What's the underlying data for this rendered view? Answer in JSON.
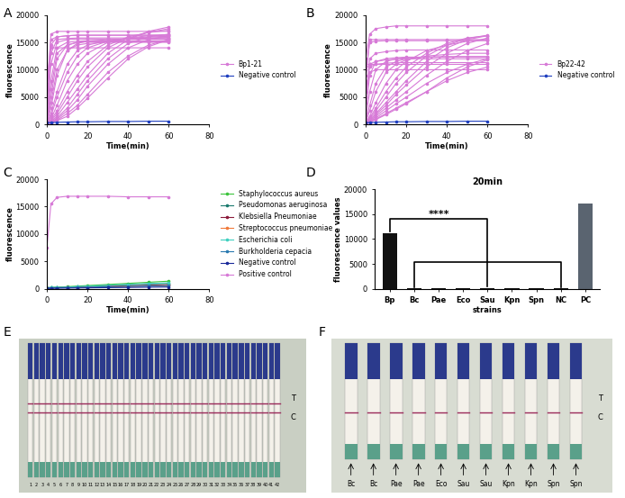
{
  "chart_data": [
    {
      "panel": "A",
      "type": "line",
      "x_label": "Time(min)",
      "y_label": "fluorescence",
      "xlim": [
        0,
        80
      ],
      "xticks": [
        0,
        20,
        40,
        60,
        80
      ],
      "ylim": [
        0,
        20000
      ],
      "yticks": [
        0,
        5000,
        10000,
        15000,
        20000
      ],
      "legend": "right",
      "x": [
        0,
        2,
        5,
        10,
        15,
        20,
        30,
        40,
        50,
        60
      ],
      "series": [
        {
          "name": "Bp1-21",
          "color": "#d77ad7",
          "marker": "o",
          "curves": [
            [
              7000,
              15500,
              16000,
              16200,
              16300,
              16300,
              16300,
              16300,
              16300,
              16300
            ],
            [
              3000,
              13000,
              15500,
              15700,
              15800,
              15800,
              15800,
              15800,
              15800,
              15800
            ],
            [
              500,
              8000,
              14000,
              15000,
              15200,
              15300,
              15300,
              15300,
              15300,
              15300
            ],
            [
              300,
              5000,
              12000,
              14500,
              15000,
              15200,
              15200,
              15200,
              15200,
              15200
            ],
            [
              300,
              3000,
              9000,
              13500,
              14800,
              15200,
              15500,
              15600,
              15600,
              15600
            ],
            [
              200,
              2000,
              6000,
              11000,
              13500,
              14500,
              15300,
              15600,
              15800,
              15900
            ],
            [
              200,
              1500,
              5000,
              9500,
              12500,
              14000,
              15200,
              15700,
              16000,
              16100
            ],
            [
              200,
              1000,
              3500,
              8000,
              11000,
              13000,
              15000,
              15800,
              16200,
              16400
            ],
            [
              200,
              800,
              2500,
              6000,
              9000,
              11500,
              14500,
              16000,
              16800,
              17200
            ],
            [
              200,
              600,
              2000,
              5000,
              8000,
              10500,
              14000,
              15800,
              16800,
              17500
            ],
            [
              200,
              500,
              1500,
              4000,
              6500,
              9000,
              13000,
              15500,
              17000,
              17800
            ],
            [
              150,
              400,
              1200,
              3000,
              5500,
              8000,
              12000,
              14800,
              16000,
              16500
            ],
            [
              150,
              400,
              1000,
              2500,
              4500,
              7000,
              11000,
              14000,
              15500,
              16200
            ],
            [
              150,
              300,
              800,
              2000,
              3500,
              5500,
              9500,
              12500,
              14500,
              15500
            ],
            [
              150,
              300,
              700,
              1500,
              3000,
              4800,
              8500,
              12000,
              14200,
              15500
            ],
            [
              7500,
              14000,
              14000,
              14000,
              14000,
              14000,
              14000,
              14000,
              14000,
              14000
            ],
            [
              5000,
              16500,
              17000,
              17000,
              17000,
              17000,
              17000,
              17000,
              17000,
              17000
            ],
            [
              2000,
              14500,
              16000,
              16200,
              16300,
              16300,
              16300,
              16300,
              16300,
              16300
            ],
            [
              1000,
              11000,
              15000,
              15500,
              15600,
              15600,
              15600,
              15600,
              15600,
              15600
            ],
            [
              500,
              6500,
              13000,
              14500,
              15000,
              15100,
              15100,
              15100,
              15100,
              15100
            ],
            [
              400,
              4000,
              10000,
              13500,
              14500,
              14800,
              15000,
              15000,
              15000,
              15000
            ]
          ]
        },
        {
          "name": "Negative control",
          "color": "#1f3fbf",
          "marker": "o",
          "values": [
            300,
            350,
            400,
            450,
            500,
            500,
            550,
            550,
            600,
            600
          ]
        }
      ]
    },
    {
      "panel": "B",
      "type": "line",
      "x_label": "Time(min)",
      "y_label": "fluorescence",
      "xlim": [
        0,
        80
      ],
      "xticks": [
        0,
        20,
        40,
        60,
        80
      ],
      "ylim": [
        0,
        20000
      ],
      "yticks": [
        0,
        5000,
        10000,
        15000,
        20000
      ],
      "legend": "right",
      "x": [
        0,
        2,
        5,
        10,
        15,
        20,
        30,
        40,
        50,
        60
      ],
      "series": [
        {
          "name": "Bp22-42",
          "color": "#d77ad7",
          "marker": "o",
          "curves": [
            [
              10000,
              11000,
              11500,
              11800,
              11900,
              12000,
              12000,
              12000,
              12000,
              12000
            ],
            [
              6000,
              10500,
              11000,
              11200,
              11300,
              11300,
              11300,
              11300,
              11300,
              11300
            ],
            [
              9000,
              15000,
              15200,
              15300,
              15300,
              15300,
              15300,
              15300,
              15300,
              15300
            ],
            [
              4000,
              12000,
              13000,
              13300,
              13500,
              13600,
              13600,
              13600,
              13600,
              13600
            ],
            [
              2000,
              9000,
              11500,
              12000,
              12200,
              12300,
              12300,
              12300,
              12300,
              12300
            ],
            [
              1000,
              6000,
              10000,
              11500,
              12000,
              12200,
              12300,
              12300,
              12300,
              12300
            ],
            [
              500,
              3500,
              7500,
              10500,
              11500,
              12000,
              12300,
              12400,
              12400,
              12400
            ],
            [
              400,
              2500,
              6000,
              9500,
              11000,
              11800,
              12500,
              12800,
              13000,
              13000
            ],
            [
              300,
              1500,
              4000,
              7500,
              10000,
              11500,
              13500,
              14500,
              15200,
              15500
            ],
            [
              300,
              1200,
              3000,
              6000,
              8500,
              10500,
              13000,
              14800,
              15800,
              16200
            ],
            [
              200,
              1000,
              2500,
              5000,
              7500,
              9500,
              12500,
              14500,
              15700,
              16300
            ],
            [
              200,
              800,
              2000,
              4000,
              6000,
              8000,
              11500,
              14000,
              15500,
              16200
            ],
            [
              200,
              700,
              1800,
              3500,
              5500,
              7200,
              10500,
              13000,
              14800,
              15800
            ],
            [
              200,
              600,
              1500,
              3000,
              4500,
              6000,
              9000,
              11500,
              13500,
              14800
            ],
            [
              200,
              500,
              1200,
              2500,
              3800,
              5000,
              7500,
              9500,
              11000,
              12000
            ],
            [
              150,
              400,
              1000,
              2000,
              3000,
              4000,
              6000,
              8000,
              9500,
              10500
            ],
            [
              150,
              400,
              900,
              1800,
              2800,
              3800,
              6000,
              8500,
              10500,
              11800
            ],
            [
              12000,
              16500,
              17500,
              17800,
              18000,
              18000,
              18000,
              18000,
              18000,
              18000
            ],
            [
              8000,
              15500,
              15500,
              15500,
              15500,
              15500,
              15500,
              15500,
              15500,
              15500
            ],
            [
              11000,
              11000,
              11000,
              11000,
              11000,
              11000,
              11000,
              11000,
              11000,
              11000
            ],
            [
              5000,
              9500,
              10000,
              10000,
              10000,
              10000,
              10000,
              10000,
              10000,
              10000
            ]
          ]
        },
        {
          "name": "Negative control",
          "color": "#1f3fbf",
          "marker": "o",
          "values": [
            300,
            350,
            400,
            450,
            500,
            500,
            550,
            550,
            600,
            600
          ]
        }
      ]
    },
    {
      "panel": "C",
      "type": "line",
      "x_label": "Time(min)",
      "y_label": "fluorescence",
      "xlim": [
        0,
        80
      ],
      "xticks": [
        0,
        20,
        40,
        60,
        80
      ],
      "ylim": [
        0,
        20000
      ],
      "yticks": [
        0,
        5000,
        10000,
        15000,
        20000
      ],
      "legend": "right",
      "x": [
        0,
        2,
        5,
        10,
        15,
        20,
        30,
        40,
        50,
        60
      ],
      "series": [
        {
          "name": "Staphylococcus aureus",
          "color": "#3cc43c",
          "marker": "o",
          "values": [
            200,
            250,
            300,
            400,
            500,
            600,
            800,
            1000,
            1200,
            1400
          ]
        },
        {
          "name": "Pseudomonas aeruginosa",
          "color": "#1a7a6e",
          "marker": "o",
          "values": [
            200,
            220,
            250,
            300,
            380,
            450,
            600,
            750,
            900,
            1000
          ]
        },
        {
          "name": "Klebsiella Pneumoniae",
          "color": "#8b1a3a",
          "marker": "o",
          "values": [
            150,
            180,
            200,
            250,
            300,
            350,
            450,
            550,
            650,
            750
          ]
        },
        {
          "name": "Streptococcus pneumoniae",
          "color": "#f07a3a",
          "marker": "o",
          "values": [
            150,
            170,
            200,
            230,
            270,
            300,
            380,
            450,
            520,
            600
          ]
        },
        {
          "name": "Escherichia coli",
          "color": "#40d0c0",
          "marker": "o",
          "values": [
            200,
            230,
            260,
            320,
            400,
            480,
            650,
            800,
            950,
            1100
          ]
        },
        {
          "name": "Burkholderia cepacia",
          "color": "#2a7ab0",
          "marker": "o",
          "values": [
            150,
            170,
            190,
            220,
            260,
            300,
            380,
            460,
            540,
            620
          ]
        },
        {
          "name": "Negative control",
          "color": "#1a2a9a",
          "marker": "o",
          "values": [
            100,
            110,
            120,
            140,
            160,
            180,
            220,
            260,
            300,
            340
          ]
        },
        {
          "name": "Positive control",
          "color": "#d77ad7",
          "marker": "o",
          "values": [
            7500,
            15500,
            16700,
            16900,
            16900,
            16900,
            16900,
            16800,
            16800,
            16800
          ]
        }
      ]
    },
    {
      "panel": "D",
      "type": "bar",
      "title": "20min",
      "x_label": "strains",
      "y_label": "fluorescence values",
      "categories": [
        "Bp",
        "Bc",
        "Pae",
        "Eco",
        "Sau",
        "Kpn",
        "Spn",
        "NC",
        "PC"
      ],
      "values": [
        11200,
        80,
        60,
        60,
        150,
        60,
        60,
        80,
        17200
      ],
      "colors": [
        "#111111",
        "#111111",
        "#111111",
        "#111111",
        "#111111",
        "#111111",
        "#111111",
        "#111111",
        "#5a6470"
      ],
      "ylim": [
        0,
        20000
      ],
      "yticks": [
        0,
        5000,
        10000,
        15000,
        20000
      ],
      "comparisons": [
        {
          "from": "Bp",
          "to": "Sau",
          "label": "****"
        },
        {
          "from": "Bc",
          "to": "NC"
        }
      ]
    }
  ],
  "photos": [
    {
      "panel": "E",
      "line_labels": [
        "T",
        "C"
      ],
      "test_line": true,
      "strip_labels": [
        "1",
        "2",
        "3",
        "4",
        "5",
        "6",
        "7",
        "8",
        "9",
        "10",
        "11",
        "12",
        "13",
        "14",
        "15",
        "16",
        "17",
        "18",
        "19",
        "20",
        "21",
        "22",
        "23",
        "24",
        "25",
        "26",
        "27",
        "28",
        "29",
        "30",
        "31",
        "32",
        "33",
        "34",
        "35",
        "36",
        "37",
        "38",
        "39",
        "40",
        "41",
        "42"
      ]
    },
    {
      "panel": "F",
      "line_labels": [
        "T",
        "C"
      ],
      "test_line": false,
      "strip_labels": [
        "Bc",
        "Bc",
        "Pae",
        "Pae",
        "Eco",
        "Sau",
        "Sau",
        "Kpn",
        "Kpn",
        "Spn",
        "Spn"
      ]
    }
  ]
}
